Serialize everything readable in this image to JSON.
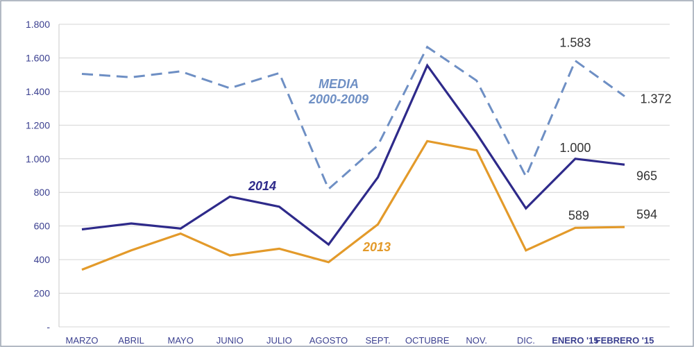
{
  "chart_data": {
    "type": "line",
    "categories": [
      "MARZO",
      "ABRIL",
      "MAYO",
      "JUNIO",
      "JULIO",
      "AGOSTO",
      "SEPT.",
      "OCTUBRE",
      "NOV.",
      "DIC.",
      "ENERO '15",
      "FEBRERO '15"
    ],
    "bold_categories": [
      "ENERO '15",
      "FEBRERO '15"
    ],
    "ylim": [
      0,
      1800
    ],
    "yticks": [
      {
        "value": 0,
        "label": "-"
      },
      {
        "value": 200,
        "label": "200"
      },
      {
        "value": 400,
        "label": "400"
      },
      {
        "value": 600,
        "label": "600"
      },
      {
        "value": 800,
        "label": "800"
      },
      {
        "value": 1000,
        "label": "1.000"
      },
      {
        "value": 1200,
        "label": "1.200"
      },
      {
        "value": 1400,
        "label": "1.400"
      },
      {
        "value": 1600,
        "label": "1.600"
      },
      {
        "value": 1800,
        "label": "1.800"
      }
    ],
    "grid": true,
    "series": [
      {
        "id": "media",
        "name_line1": "MEDIA",
        "name_line2": "2000-2009",
        "color": "#6e8fc4",
        "dashed": true,
        "values": [
          1505,
          1485,
          1520,
          1420,
          1510,
          820,
          1080,
          1665,
          1465,
          895,
          1583,
          1372
        ]
      },
      {
        "id": "y2014",
        "name": "2014",
        "color": "#2e2a8a",
        "dashed": false,
        "values": [
          580,
          615,
          585,
          775,
          715,
          490,
          890,
          1555,
          1150,
          705,
          1000,
          965
        ]
      },
      {
        "id": "y2013",
        "name": "2013",
        "color": "#e39a2a",
        "dashed": false,
        "values": [
          340,
          455,
          555,
          425,
          465,
          385,
          610,
          1105,
          1050,
          455,
          589,
          594
        ]
      }
    ],
    "data_labels": [
      {
        "series": "media",
        "index": 10,
        "text": "1.583"
      },
      {
        "series": "media",
        "index": 11,
        "text": "1.372"
      },
      {
        "series": "y2014",
        "index": 10,
        "text": "1.000"
      },
      {
        "series": "y2014",
        "index": 11,
        "text": "965"
      },
      {
        "series": "y2013",
        "index": 10,
        "text": "589"
      },
      {
        "series": "y2013",
        "index": 11,
        "text": "594"
      }
    ]
  }
}
